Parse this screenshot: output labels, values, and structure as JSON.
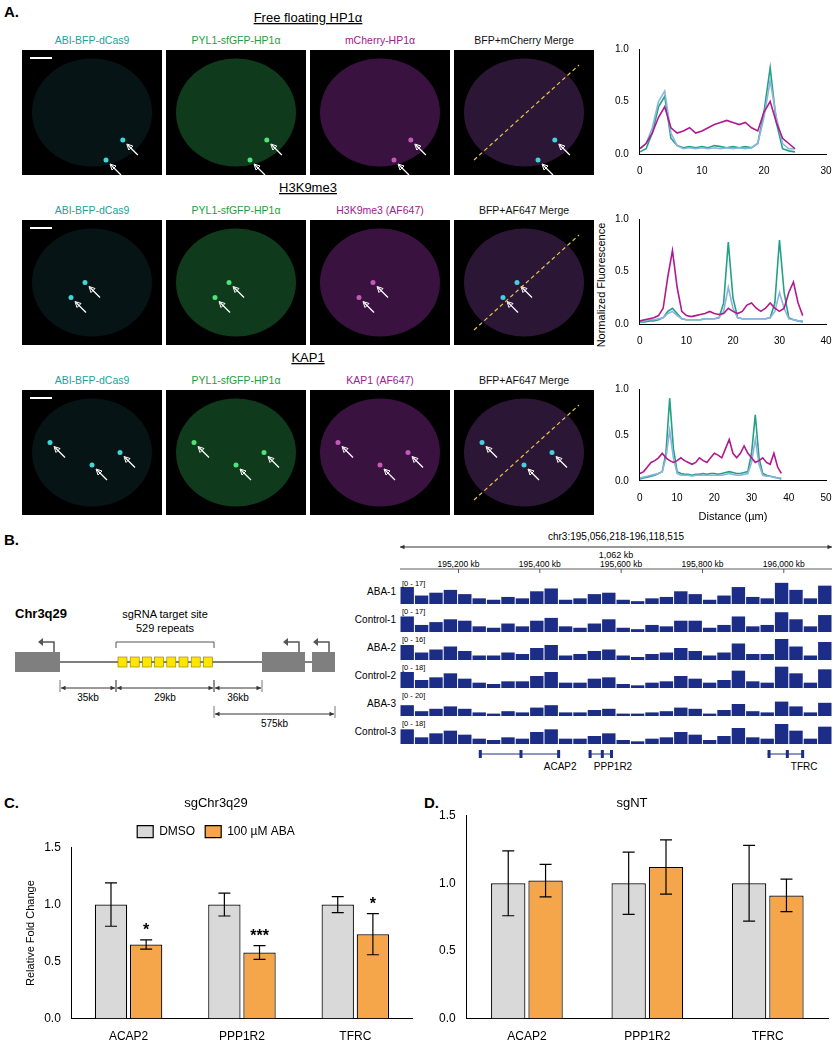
{
  "panel_labels": [
    "A.",
    "B.",
    "C.",
    "D."
  ],
  "panel_a": {
    "rows": [
      {
        "title": "Free floating HP1α",
        "columns": [
          "ABI-BFP-dCas9",
          "PYL1-sfGFP-HP1α",
          "mCherry-HP1α",
          "BFP+mCherry Merge"
        ]
      },
      {
        "title": "H3K9me3",
        "columns": [
          "ABI-BFP-dCas9",
          "PYL1-sfGFP-HP1α",
          "H3K9me3 (AF647)",
          "BFP+AF647 Merge"
        ]
      },
      {
        "title": "KAP1",
        "columns": [
          "ABI-BFP-dCas9",
          "PYL1-sfGFP-HP1α",
          "KAP1 (AF647)",
          "BFP+AF647 Merge"
        ]
      }
    ],
    "profile_ylabel": "Normalized Fluorescence"
  },
  "chart_data": [
    {
      "type": "line",
      "x": [
        0,
        1,
        2,
        3,
        4,
        5,
        6,
        7,
        8,
        9,
        10,
        11,
        12,
        13,
        14,
        15,
        16,
        17,
        18,
        19,
        20,
        21,
        22,
        23,
        24,
        25
      ],
      "series": [
        {
          "color": "#b0198f",
          "values": [
            0.05,
            0.1,
            0.2,
            0.35,
            0.45,
            0.25,
            0.2,
            0.22,
            0.25,
            0.2,
            0.22,
            0.25,
            0.28,
            0.3,
            0.32,
            0.3,
            0.28,
            0.3,
            0.25,
            0.22,
            0.4,
            0.5,
            0.3,
            0.15,
            0.1,
            0.05
          ]
        },
        {
          "color": "#8fb3e0",
          "values": [
            0.05,
            0.1,
            0.25,
            0.5,
            0.6,
            0.2,
            0.08,
            0.05,
            0.06,
            0.05,
            0.06,
            0.05,
            0.06,
            0.05,
            0.06,
            0.05,
            0.06,
            0.05,
            0.06,
            0.1,
            0.35,
            0.7,
            0.35,
            0.1,
            0.05,
            0.05
          ]
        },
        {
          "color": "#23a184",
          "values": [
            0.02,
            0.05,
            0.2,
            0.45,
            0.55,
            0.15,
            0.08,
            0.06,
            0.07,
            0.06,
            0.07,
            0.06,
            0.08,
            0.07,
            0.06,
            0.07,
            0.06,
            0.07,
            0.06,
            0.1,
            0.4,
            0.82,
            0.3,
            0.05,
            0.03,
            0.02
          ]
        }
      ],
      "xlim": [
        0,
        30
      ],
      "xticks": [
        0,
        10,
        20,
        30
      ],
      "ylim": [
        0,
        1
      ],
      "yticks": [
        {
          "value": 0,
          "label": "0.0"
        },
        {
          "value": 0.5,
          "label": "0.5"
        },
        {
          "value": 1,
          "label": "1.0"
        }
      ],
      "grid": false
    },
    {
      "type": "line",
      "x": [
        0,
        1,
        2,
        3,
        4,
        5,
        6,
        7,
        8,
        9,
        10,
        11,
        12,
        13,
        14,
        15,
        16,
        17,
        18,
        19,
        20,
        21,
        22,
        23,
        24,
        25,
        26,
        27,
        28,
        29,
        30,
        31,
        32,
        33,
        34,
        35
      ],
      "series": [
        {
          "color": "#b0198f",
          "values": [
            0.03,
            0.04,
            0.05,
            0.06,
            0.08,
            0.15,
            0.45,
            0.7,
            0.35,
            0.12,
            0.08,
            0.07,
            0.08,
            0.09,
            0.1,
            0.12,
            0.1,
            0.09,
            0.1,
            0.15,
            0.12,
            0.1,
            0.12,
            0.18,
            0.2,
            0.15,
            0.12,
            0.15,
            0.2,
            0.15,
            0.12,
            0.15,
            0.3,
            0.4,
            0.2,
            0.08
          ]
        },
        {
          "color": "#8fb3e0",
          "values": [
            0.03,
            0.03,
            0.04,
            0.04,
            0.05,
            0.06,
            0.1,
            0.12,
            0.08,
            0.05,
            0.04,
            0.04,
            0.04,
            0.04,
            0.05,
            0.05,
            0.05,
            0.06,
            0.12,
            0.35,
            0.15,
            0.06,
            0.05,
            0.05,
            0.05,
            0.05,
            0.05,
            0.05,
            0.06,
            0.12,
            0.3,
            0.15,
            0.05,
            0.04,
            0.03,
            0.03
          ]
        },
        {
          "color": "#23a184",
          "values": [
            0.02,
            0.02,
            0.03,
            0.03,
            0.04,
            0.06,
            0.12,
            0.15,
            0.1,
            0.05,
            0.04,
            0.04,
            0.04,
            0.04,
            0.05,
            0.05,
            0.05,
            0.06,
            0.2,
            0.78,
            0.25,
            0.06,
            0.05,
            0.05,
            0.05,
            0.05,
            0.05,
            0.05,
            0.06,
            0.2,
            0.8,
            0.3,
            0.06,
            0.04,
            0.03,
            0.02
          ]
        }
      ],
      "xlim": [
        0,
        40
      ],
      "xticks": [
        0,
        10,
        20,
        30,
        40
      ],
      "ylim": [
        0,
        1
      ],
      "yticks": [
        {
          "value": 0,
          "label": "0.0"
        },
        {
          "value": 0.5,
          "label": "0.5"
        },
        {
          "value": 1,
          "label": "1.0"
        }
      ],
      "grid": false
    },
    {
      "type": "line",
      "xlabel": "Distance (µm)",
      "x": [
        0,
        1,
        2,
        3,
        4,
        5,
        6,
        7,
        8,
        9,
        10,
        11,
        12,
        13,
        14,
        15,
        16,
        17,
        18,
        19,
        20,
        21,
        22,
        23,
        24,
        25,
        26,
        27,
        28,
        29,
        30,
        31,
        32,
        33,
        34,
        35,
        36,
        37,
        38
      ],
      "series": [
        {
          "color": "#b0198f",
          "values": [
            0.08,
            0.1,
            0.15,
            0.2,
            0.22,
            0.25,
            0.3,
            0.25,
            0.22,
            0.2,
            0.22,
            0.25,
            0.22,
            0.2,
            0.18,
            0.2,
            0.25,
            0.22,
            0.2,
            0.25,
            0.3,
            0.28,
            0.25,
            0.35,
            0.45,
            0.3,
            0.25,
            0.3,
            0.38,
            0.3,
            0.25,
            0.2,
            0.22,
            0.25,
            0.2,
            0.18,
            0.3,
            0.15,
            0.08
          ]
        },
        {
          "color": "#8fb3e0",
          "values": [
            0.03,
            0.04,
            0.05,
            0.06,
            0.07,
            0.08,
            0.1,
            0.25,
            0.55,
            0.25,
            0.08,
            0.06,
            0.06,
            0.06,
            0.05,
            0.06,
            0.06,
            0.06,
            0.06,
            0.06,
            0.06,
            0.06,
            0.06,
            0.07,
            0.08,
            0.07,
            0.06,
            0.06,
            0.07,
            0.08,
            0.2,
            0.45,
            0.18,
            0.06,
            0.05,
            0.05,
            0.04,
            0.03,
            0.03
          ]
        },
        {
          "color": "#23a184",
          "values": [
            0.02,
            0.03,
            0.04,
            0.05,
            0.06,
            0.08,
            0.1,
            0.3,
            0.9,
            0.35,
            0.1,
            0.08,
            0.07,
            0.07,
            0.06,
            0.07,
            0.07,
            0.08,
            0.07,
            0.08,
            0.08,
            0.07,
            0.08,
            0.09,
            0.1,
            0.09,
            0.08,
            0.08,
            0.09,
            0.1,
            0.3,
            0.72,
            0.25,
            0.08,
            0.06,
            0.05,
            0.04,
            0.03,
            0.02
          ]
        }
      ],
      "xlim": [
        0,
        50
      ],
      "xticks": [
        0,
        10,
        20,
        30,
        40,
        50
      ],
      "ylim": [
        0,
        1
      ],
      "yticks": [
        {
          "value": 0,
          "label": "0.0"
        },
        {
          "value": 0.5,
          "label": "0.5"
        },
        {
          "value": 1,
          "label": "1.0"
        }
      ],
      "grid": false
    },
    {
      "type": "bar",
      "title": "sgChr3q29",
      "ylabel": "Relative Fold Change",
      "categories": [
        "ACAP2",
        "PPP1R2",
        "TFRC"
      ],
      "series": [
        {
          "name": "DMSO",
          "color": "#d9d9d9",
          "values": [
            1,
            1,
            1
          ],
          "errors": [
            0.19,
            0.1,
            0.07
          ]
        },
        {
          "name": "100 µM ABA",
          "color": "#f5a54a",
          "values": [
            0.65,
            0.58,
            0.74
          ],
          "errors": [
            0.04,
            0.06,
            0.18
          ],
          "significance": [
            "*",
            "***",
            "*"
          ]
        }
      ],
      "ylim": [
        0,
        1.5
      ],
      "yticks": [
        {
          "value": 0,
          "label": "0.0"
        },
        {
          "value": 0.5,
          "label": "0.5"
        },
        {
          "value": 1,
          "label": "1.0"
        },
        {
          "value": 1.5,
          "label": "1.5"
        }
      ],
      "grid": false,
      "legend": "top"
    },
    {
      "type": "bar",
      "title": "sgNT",
      "categories": [
        "ACAP2",
        "PPP1R2",
        "TFRC"
      ],
      "series": [
        {
          "color": "#d9d9d9",
          "values": [
            1,
            1,
            1
          ],
          "errors": [
            0.24,
            0.23,
            0.28
          ]
        },
        {
          "color": "#f5a54a",
          "values": [
            1.02,
            1.12,
            0.91
          ],
          "errors": [
            0.12,
            0.2,
            0.12
          ]
        }
      ],
      "ylim": [
        0,
        1.5
      ],
      "yticks": [
        {
          "value": 0,
          "label": "0.0"
        },
        {
          "value": 0.5,
          "label": "0.5"
        },
        {
          "value": 1,
          "label": "1.0"
        },
        {
          "value": 1.5,
          "label": "1.5"
        }
      ],
      "grid": false
    }
  ],
  "panel_b": {
    "diagram": {
      "locus": "Chr3q29",
      "site_label": "sgRNA target site",
      "repeats_label": "529 repeats",
      "distances": [
        "35kb",
        "29kb",
        "36kb",
        "575kb"
      ]
    },
    "genome_browser": {
      "region": "chr3:195,056,218-196,118,515",
      "span_label": "1,062 kb",
      "color": "#1c2d87",
      "xlim": [
        195056.218,
        196118.515
      ],
      "xticks": [
        {
          "value": 195200,
          "label": "195,200 kb"
        },
        {
          "value": 195400,
          "label": "195,400 kb"
        },
        {
          "value": 195600,
          "label": "195,600 kb"
        },
        {
          "value": 195800,
          "label": "195,800 kb"
        },
        {
          "value": 196000,
          "label": "196,000 kb"
        }
      ],
      "tracks": [
        {
          "name": "ABA-1",
          "ymax": 17,
          "ymax_label": "[0 - 17]",
          "signal": [
            12,
            6,
            8,
            10,
            7,
            4,
            3,
            5,
            4,
            9,
            11,
            3,
            4,
            7,
            8,
            3,
            2,
            4,
            5,
            9,
            7,
            3,
            6,
            12,
            5,
            4,
            15,
            10,
            4,
            13
          ]
        },
        {
          "name": "Control-1",
          "ymax": 17,
          "ymax_label": "[0 - 17]",
          "signal": [
            11,
            5,
            7,
            9,
            8,
            4,
            3,
            6,
            4,
            8,
            10,
            4,
            3,
            6,
            9,
            3,
            2,
            5,
            4,
            8,
            8,
            3,
            5,
            11,
            4,
            5,
            14,
            9,
            4,
            12
          ]
        },
        {
          "name": "ABA-2",
          "ymax": 16,
          "ymax_label": "[0 - 16]",
          "signal": [
            10,
            5,
            7,
            9,
            6,
            3,
            3,
            5,
            4,
            8,
            10,
            3,
            4,
            6,
            7,
            3,
            2,
            4,
            5,
            8,
            6,
            3,
            5,
            11,
            4,
            4,
            14,
            9,
            3,
            12
          ]
        },
        {
          "name": "Control-2",
          "ymax": 18,
          "ymax_label": "[0 - 18]",
          "signal": [
            12,
            6,
            8,
            11,
            7,
            4,
            3,
            5,
            5,
            9,
            12,
            4,
            4,
            7,
            8,
            3,
            2,
            4,
            5,
            9,
            7,
            4,
            6,
            13,
            5,
            4,
            16,
            11,
            4,
            14
          ]
        },
        {
          "name": "ABA-3",
          "ymax": 20,
          "ymax_label": "[0 - 20]",
          "signal": [
            9,
            4,
            6,
            8,
            6,
            3,
            2,
            4,
            3,
            7,
            9,
            3,
            3,
            5,
            6,
            2,
            2,
            3,
            4,
            7,
            6,
            2,
            5,
            10,
            4,
            3,
            12,
            8,
            3,
            11
          ]
        },
        {
          "name": "Control-3",
          "ymax": 18,
          "ymax_label": "[0 - 18]",
          "signal": [
            11,
            5,
            8,
            10,
            7,
            4,
            3,
            5,
            4,
            9,
            11,
            4,
            4,
            6,
            8,
            3,
            2,
            4,
            5,
            9,
            7,
            3,
            6,
            12,
            5,
            4,
            15,
            10,
            4,
            13
          ]
        }
      ],
      "genes": [
        {
          "name": "ACAP2",
          "start": 195250,
          "end": 195450
        },
        {
          "name": "PPP1R2",
          "start": 195520,
          "end": 195580
        },
        {
          "name": "TFRC",
          "start": 195960,
          "end": 196050
        }
      ]
    }
  }
}
